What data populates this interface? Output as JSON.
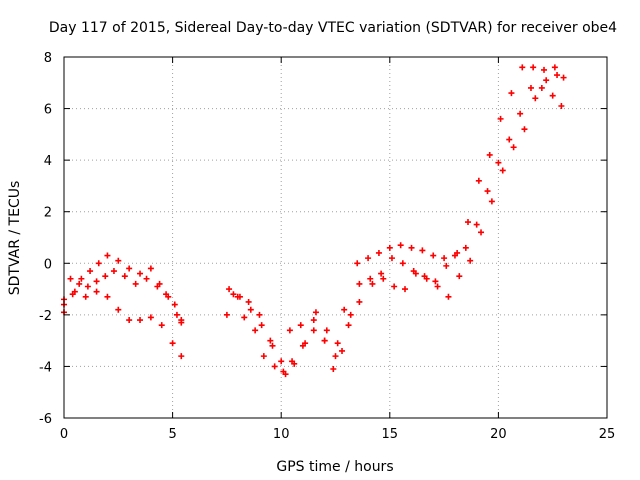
{
  "chart_data": {
    "type": "scatter",
    "title": "Day 117 of 2015, Sidereal Day-to-day VTEC variation (SDTVAR) for receiver obe4",
    "xlabel": "GPS time / hours",
    "ylabel": "SDTVAR / TECUs",
    "xlim": [
      0,
      25
    ],
    "ylim": [
      -6,
      8
    ],
    "xticks": [
      0,
      5,
      10,
      15,
      20,
      25
    ],
    "yticks": [
      -6,
      -4,
      -2,
      0,
      2,
      4,
      6,
      8
    ],
    "grid": true,
    "marker": "+",
    "color": "#ff0000",
    "series": [
      {
        "x": [
          0,
          0.3,
          0.7,
          1.1,
          1.5,
          1.9,
          2.3,
          2.8,
          3.3,
          3.8,
          4.3,
          4.7,
          5.1,
          5.4,
          7.5,
          8.0,
          8.5,
          9.0,
          9.5,
          10.0,
          10.4,
          10.9,
          11.5,
          12.0,
          12.5,
          12.9,
          13.5,
          14.0,
          14.5,
          15.0,
          15.5,
          16.0,
          16.5,
          17.0,
          17.5,
          18.0,
          18.5,
          19.0,
          19.5,
          20.0,
          20.5,
          21.0,
          21.5,
          22.0,
          22.5,
          22.9
        ],
        "y": [
          -1.4,
          -0.6,
          -0.8,
          -0.9,
          -0.7,
          -0.5,
          -0.3,
          -0.5,
          -0.8,
          -0.6,
          -0.9,
          -1.2,
          -1.6,
          -2.2,
          -2.0,
          -1.3,
          -1.5,
          -2.0,
          -3.0,
          -3.8,
          -2.6,
          -2.4,
          -2.6,
          -3.0,
          -3.6,
          -1.8,
          0.0,
          0.2,
          0.4,
          0.6,
          0.7,
          0.6,
          0.5,
          0.3,
          0.2,
          0.3,
          0.6,
          1.5,
          2.8,
          3.9,
          4.8,
          5.8,
          6.8,
          6.8,
          6.5,
          6.1
        ]
      },
      {
        "x": [
          0,
          0.4,
          0.8,
          1.2,
          1.6,
          2.0,
          2.5,
          3.0,
          3.5,
          4.0,
          4.4,
          4.8,
          5.2,
          5.4,
          7.6,
          8.1,
          8.6,
          9.1,
          9.6,
          10.1,
          10.5,
          11.0,
          11.5,
          12.0,
          12.4,
          12.8,
          13.2,
          13.6,
          14.1,
          14.6,
          15.1,
          15.6,
          16.1,
          16.6,
          17.1,
          17.6,
          18.1,
          18.6,
          19.1,
          19.6,
          20.1,
          20.6,
          21.1,
          21.6,
          22.1,
          22.6
        ],
        "y": [
          -1.9,
          -1.2,
          -0.6,
          -0.3,
          0.0,
          0.3,
          0.1,
          -0.2,
          -0.4,
          -0.2,
          -0.8,
          -1.3,
          -2.0,
          -2.3,
          -1.0,
          -1.3,
          -1.8,
          -2.4,
          -3.2,
          -4.2,
          -3.8,
          -3.2,
          -2.2,
          -3.0,
          -4.1,
          -3.4,
          -2.0,
          -0.8,
          -0.6,
          -0.4,
          0.2,
          0.0,
          -0.3,
          -0.5,
          -0.7,
          -0.1,
          0.4,
          1.6,
          3.2,
          4.2,
          5.6,
          6.6,
          7.6,
          7.6,
          7.5,
          7.6
        ]
      },
      {
        "x": [
          0,
          0.5,
          1.0,
          1.5,
          2.0,
          2.5,
          3.0,
          3.5,
          4.0,
          4.5,
          5.0,
          5.4,
          7.8,
          8.3,
          8.8,
          9.2,
          9.7,
          10.2,
          10.6,
          11.1,
          11.6,
          12.1,
          12.6,
          13.1,
          13.6,
          14.2,
          14.7,
          15.2,
          15.7,
          16.2,
          16.7,
          17.2,
          17.7,
          18.2,
          18.7,
          19.2,
          19.7,
          20.2,
          20.7,
          21.2,
          21.7,
          22.2,
          22.7,
          23.0
        ],
        "y": [
          -1.6,
          -1.1,
          -1.3,
          -1.1,
          -1.3,
          -1.8,
          -2.2,
          -2.2,
          -2.1,
          -2.4,
          -3.1,
          -3.6,
          -1.2,
          -2.1,
          -2.6,
          -3.6,
          -4.0,
          -4.3,
          -3.9,
          -3.1,
          -1.9,
          -2.6,
          -3.1,
          -2.4,
          -1.5,
          -0.8,
          -0.6,
          -0.9,
          -1.0,
          -0.4,
          -0.6,
          -0.9,
          -1.3,
          -0.5,
          0.1,
          1.2,
          2.4,
          3.6,
          4.5,
          5.2,
          6.4,
          7.1,
          7.3,
          7.2
        ]
      }
    ]
  }
}
